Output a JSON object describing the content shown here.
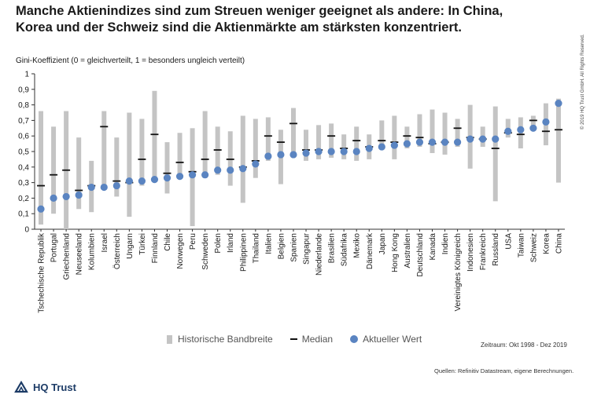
{
  "title_line1": "Manche Aktienindizes sind zum Streuen weniger geeignet als andere: In China,",
  "title_line2": "Korea und der Schweiz sind die Aktienmärkte am stärksten konzentriert.",
  "chart_data": {
    "type": "range-dot",
    "ylabel": "Gini-Koeffizient (0 = gleichverteilt, 1 = besonders ungleich verteilt)",
    "ylim": [
      0,
      1
    ],
    "yticks": [
      "0",
      "0,1",
      "0,2",
      "0,3",
      "0,4",
      "0,5",
      "0,6",
      "0,7",
      "0,8",
      "0,9",
      "1"
    ],
    "grid": false,
    "legend_position": "bottom",
    "categories": [
      "Tschechische Republik",
      "Portugal",
      "Griechenland",
      "Neuseeland",
      "Kolumbien",
      "Israel",
      "Österreich",
      "Ungarn",
      "Türkei",
      "Finnland",
      "Chile",
      "Norwegen",
      "Peru",
      "Schweden",
      "Polen",
      "Irland",
      "Philippinen",
      "Thailand",
      "Italien",
      "Belgien",
      "Spanien",
      "Singapur",
      "Niederlande",
      "Brasilien",
      "Südafrika",
      "Mexiko",
      "Dänemark",
      "Japan",
      "Hong Kong",
      "Australien",
      "Deutschland",
      "Kanada",
      "Indien",
      "Vereinigtes Königreich",
      "Indonesien",
      "Frankreich",
      "Russland",
      "USA",
      "Taiwan",
      "Schweiz",
      "Korea",
      "China"
    ],
    "series": [
      {
        "name": "Historische Bandbreite",
        "values": [
          [
            0.03,
            0.76
          ],
          [
            0.1,
            0.66
          ],
          [
            0.0,
            0.76
          ],
          [
            0.13,
            0.59
          ],
          [
            0.11,
            0.44
          ],
          [
            0.27,
            0.76
          ],
          [
            0.21,
            0.59
          ],
          [
            0.08,
            0.75
          ],
          [
            0.28,
            0.71
          ],
          [
            0.32,
            0.89
          ],
          [
            0.23,
            0.56
          ],
          [
            0.33,
            0.62
          ],
          [
            0.02,
            0.65
          ],
          [
            0.33,
            0.76
          ],
          [
            0.35,
            0.66
          ],
          [
            0.28,
            0.63
          ],
          [
            0.17,
            0.73
          ],
          [
            0.33,
            0.71
          ],
          [
            0.44,
            0.72
          ],
          [
            0.29,
            0.64
          ],
          [
            0.46,
            0.78
          ],
          [
            0.44,
            0.64
          ],
          [
            0.45,
            0.67
          ],
          [
            0.46,
            0.68
          ],
          [
            0.45,
            0.61
          ],
          [
            0.44,
            0.66
          ],
          [
            0.45,
            0.61
          ],
          [
            0.52,
            0.7
          ],
          [
            0.45,
            0.73
          ],
          [
            0.52,
            0.66
          ],
          [
            0.53,
            0.74
          ],
          [
            0.49,
            0.77
          ],
          [
            0.48,
            0.75
          ],
          [
            0.53,
            0.71
          ],
          [
            0.39,
            0.8
          ],
          [
            0.53,
            0.66
          ],
          [
            0.18,
            0.79
          ],
          [
            0.59,
            0.71
          ],
          [
            0.52,
            0.72
          ],
          [
            0.64,
            0.73
          ],
          [
            0.54,
            0.81
          ],
          [
            0.3,
            0.84
          ]
        ]
      },
      {
        "name": "Median",
        "values": [
          0.28,
          0.35,
          0.38,
          0.25,
          0.28,
          0.66,
          0.31,
          0.3,
          0.45,
          0.61,
          0.36,
          0.43,
          0.37,
          0.45,
          0.51,
          0.45,
          0.4,
          0.44,
          0.6,
          0.56,
          0.68,
          0.51,
          0.51,
          0.6,
          0.52,
          0.57,
          0.53,
          0.57,
          0.56,
          0.6,
          0.59,
          0.55,
          0.56,
          0.65,
          0.59,
          0.58,
          0.52,
          0.62,
          0.61,
          0.7,
          0.63,
          0.64
        ]
      },
      {
        "name": "Aktueller Wert",
        "values": [
          0.13,
          0.2,
          0.21,
          0.22,
          0.27,
          0.27,
          0.28,
          0.31,
          0.31,
          0.32,
          0.33,
          0.34,
          0.35,
          0.35,
          0.38,
          0.38,
          0.39,
          0.42,
          0.47,
          0.48,
          0.48,
          0.49,
          0.5,
          0.5,
          0.5,
          0.5,
          0.52,
          0.53,
          0.54,
          0.55,
          0.56,
          0.56,
          0.56,
          0.56,
          0.58,
          0.58,
          0.58,
          0.63,
          0.64,
          0.65,
          0.69,
          0.81
        ]
      }
    ],
    "colors": {
      "range": "#c4c4c4",
      "median": "#111111",
      "current": "#5a84c1"
    }
  },
  "legend": {
    "range_label": "Historische Bandbreite",
    "median_label": "Median",
    "current_label": "Aktueller Wert"
  },
  "period": "Zeitraum: Okt 1998 - Dez 2019",
  "sources": "Quellen: Refinitiv Datastream, eigene Berechnungen.",
  "copyright": "© 2019 HQ Trust GmbH. All Rights Reserved.",
  "logo": {
    "text": "HQ Trust",
    "icon": "hq-trust-logo-icon",
    "color": "#1c3b66"
  }
}
